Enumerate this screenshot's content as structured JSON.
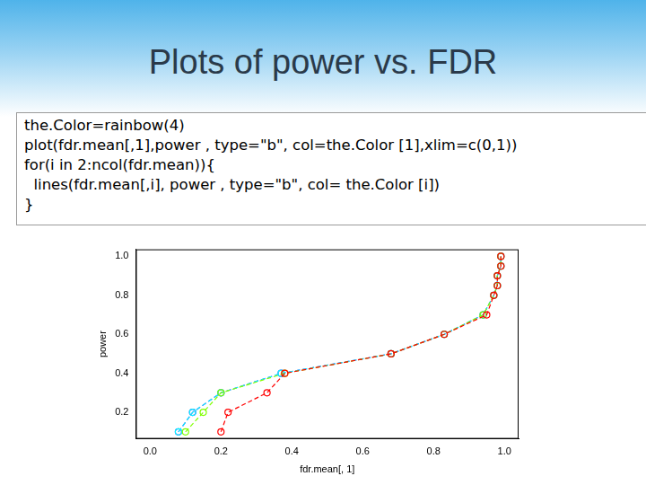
{
  "slide": {
    "title": "Plots of power vs. FDR",
    "code": [
      "the.Color=rainbow(4)",
      "plot(fdr.mean[,1],power , type=\"b\", col=the.Color [1],xlim=c(0,1))",
      "for(i in 2:ncol(fdr.mean)){",
      "  lines(fdr.mean[,i], power , type=\"b\", col= the.Color [i])",
      "}"
    ]
  },
  "chart_data": {
    "type": "line",
    "x_label": "fdr.mean[, 1]",
    "y_label": "power",
    "series": [
      {
        "color": "#FF0000",
        "marker": "circle",
        "line_style": "dashed",
        "x": [
          0.2,
          0.22,
          0.33,
          0.38,
          0.68,
          0.83,
          0.95,
          0.97,
          0.98,
          0.98,
          0.99,
          0.99
        ],
        "values": [
          0.1,
          0.2,
          0.3,
          0.4,
          0.5,
          0.6,
          0.7,
          0.8,
          0.85,
          0.9,
          0.95,
          1.0
        ]
      },
      {
        "color": "#80FF00",
        "marker": "circle",
        "line_style": "dashed",
        "x": [
          0.1,
          0.15,
          0.2,
          0.38,
          0.68,
          0.83,
          0.94,
          0.97,
          0.98,
          0.98,
          0.99,
          0.99
        ],
        "values": [
          0.1,
          0.2,
          0.3,
          0.4,
          0.5,
          0.6,
          0.7,
          0.8,
          0.85,
          0.9,
          0.95,
          1.0
        ]
      },
      {
        "color": "#00FFFF",
        "marker": "circle",
        "line_style": "dashed",
        "x": [
          0.08,
          0.12,
          0.2,
          0.37,
          0.68,
          0.83,
          0.94,
          0.97,
          0.98,
          0.98,
          0.99,
          0.99
        ],
        "values": [
          0.1,
          0.2,
          0.3,
          0.4,
          0.5,
          0.6,
          0.7,
          0.8,
          0.85,
          0.9,
          0.95,
          1.0
        ]
      },
      {
        "color": "#8000FF",
        "marker": "circle",
        "line_style": "dashed",
        "x": [
          0.08,
          0.12,
          0.2,
          0.37,
          0.68,
          0.83,
          0.94,
          0.97,
          0.98,
          0.98,
          0.99,
          0.99
        ],
        "values": [
          0.1,
          0.2,
          0.3,
          0.4,
          0.5,
          0.6,
          0.7,
          0.8,
          0.85,
          0.9,
          0.95,
          1.0
        ]
      }
    ],
    "xlim": [
      -0.04,
      1.04
    ],
    "xticks": [
      {
        "value": 0,
        "label": "0.0"
      },
      0.2,
      0.4,
      0.6,
      0.8,
      {
        "value": 1,
        "label": "1.0"
      }
    ],
    "ylim": [
      0.064,
      1.036
    ],
    "yticks": [
      0.2,
      0.4,
      0.6,
      0.8,
      {
        "value": 1,
        "label": "1.0"
      }
    ],
    "grid": false
  }
}
